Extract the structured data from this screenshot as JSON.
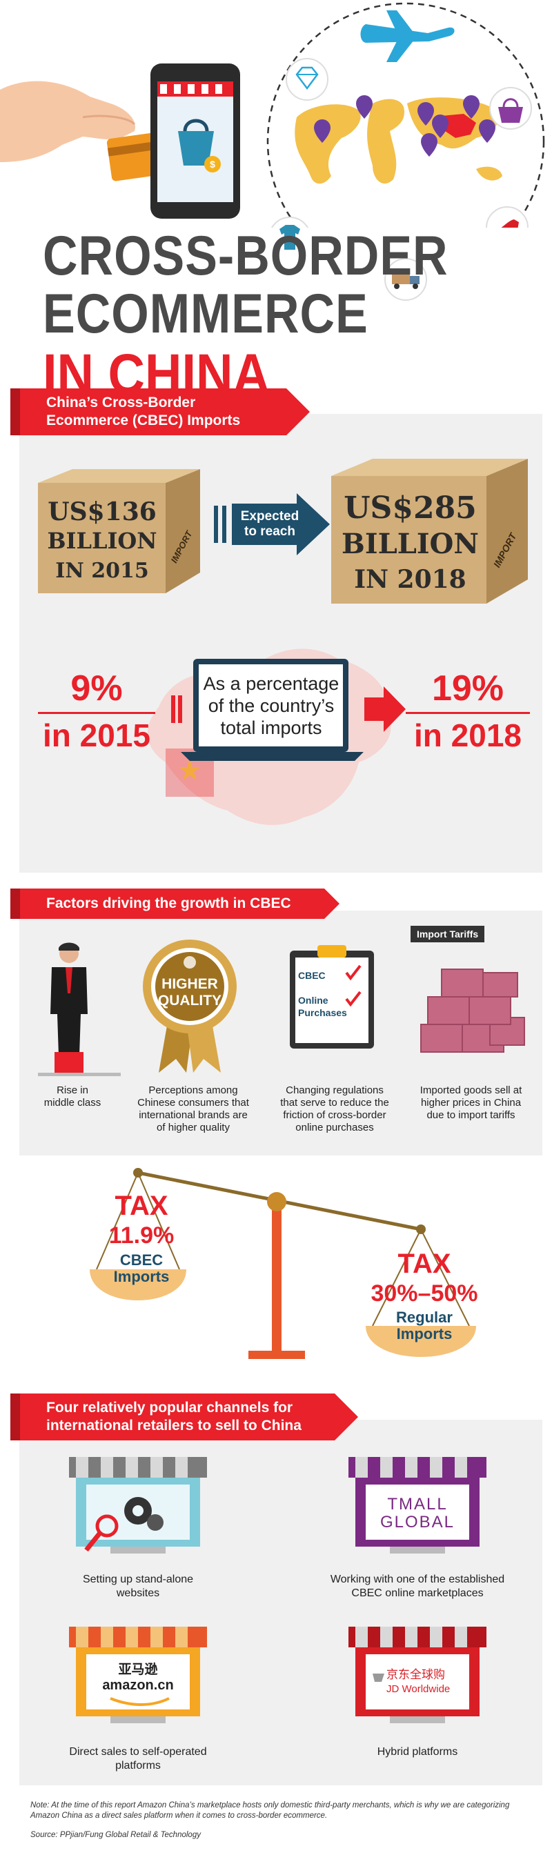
{
  "hero": {
    "title_line1": "CROSS-BORDER",
    "title_line2": "ECOMMERCE",
    "title_line3": "IN CHINA"
  },
  "imports": {
    "header_line1": "China’s Cross-Border",
    "header_line2": "Ecommerce (CBEC) Imports",
    "box_2015_line1": "US$136",
    "box_2015_line2": "BILLION",
    "box_2015_line3": "IN 2015",
    "box_2018_line1": "US$285",
    "box_2018_line2": "BILLION",
    "box_2018_line3": "IN 2018",
    "box_tag": "IMPORT",
    "arrow_line1": "Expected",
    "arrow_line2": "to reach",
    "pct_2015": "9%",
    "pct_2015_year": "in 2015",
    "pct_2018": "19%",
    "pct_2018_year": "in 2018",
    "laptop_line1": "As a percentage",
    "laptop_line2": "of the country’s",
    "laptop_line3": "total imports"
  },
  "factors": {
    "header": "Factors driving the growth in CBEC",
    "items": [
      {
        "caption_line1": "Rise in",
        "caption_line2": "middle class",
        "caption_line3": ""
      },
      {
        "caption_line1": "Perceptions among",
        "caption_line2": "Chinese consumers that",
        "caption_line3": "international brands are",
        "caption_line4": "of higher quality"
      },
      {
        "caption_line1": "Changing regulations",
        "caption_line2": "that serve to reduce the",
        "caption_line3": "friction of cross-border",
        "caption_line4": "online purchases"
      },
      {
        "caption_line1": "Imported goods sell at",
        "caption_line2": "higher prices in China",
        "caption_line3": "due to import tariffs"
      }
    ],
    "badge_line1": "HIGHER",
    "badge_line2": "QUALITY",
    "clipboard_line1": "CBEC",
    "clipboard_line2": "Online",
    "clipboard_line3": "Purchases",
    "tariff_tag": "Import Tariffs"
  },
  "tax": {
    "left_label": "TAX",
    "left_value": "11.9%",
    "left_sub1": "CBEC",
    "left_sub2": "Imports",
    "right_label": "TAX",
    "right_value": "30%–50%",
    "right_sub1": "Regular",
    "right_sub2": "Imports"
  },
  "channels": {
    "header_line1": "Four relatively popular channels for",
    "header_line2": "international retailers to sell to China",
    "items": [
      {
        "caption_line1": "Setting up stand-alone",
        "caption_line2": "websites"
      },
      {
        "caption_line1": "Working with one of the established",
        "caption_line2": "CBEC online marketplaces"
      },
      {
        "caption_line1": "Direct sales to self-operated",
        "caption_line2": "platforms"
      },
      {
        "caption_line1": "Hybrid platforms",
        "caption_line2": ""
      }
    ],
    "tmall_line1": "TMALL",
    "tmall_line2": "GLOBAL",
    "amazon_cn": "亚马逊",
    "amazon_en": "amazon.cn",
    "jd_cn": "京东全球购",
    "jd_en": "JD Worldwide"
  },
  "footer": {
    "note": "Note: At the time of this report Amazon China’s marketplace hosts only domestic third-party merchants, which is why we are categorizing Amazon China as a direct sales platform when it comes to cross-border ecommerce.",
    "source": "Source: PPjian/Fung Global Retail & Technology"
  },
  "colors": {
    "accent": "#e8212a",
    "dark_teal": "#1e4f6b",
    "box_tan": "#d2ae7a",
    "panel": "#f0f0f0"
  }
}
